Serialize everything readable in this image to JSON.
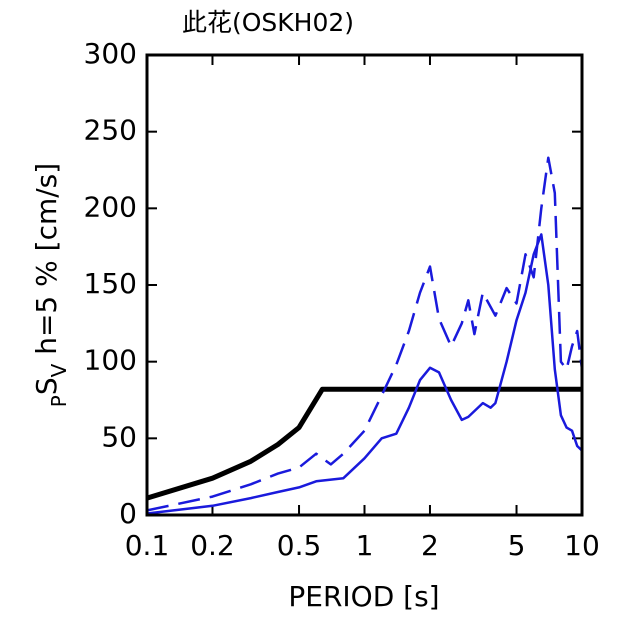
{
  "chart_data": {
    "type": "line",
    "title": "此花(OSKH02)",
    "xlabel": "PERIOD [s]",
    "ylabel": [
      "P",
      "S",
      "V",
      " h=5 % [cm/s]"
    ],
    "xscale": "log",
    "xlim": [
      0.1,
      10
    ],
    "ylim": [
      0,
      300
    ],
    "xticks": [
      0.1,
      0.2,
      0.5,
      1,
      2,
      5,
      10
    ],
    "yticks": [
      0,
      50,
      100,
      150,
      200,
      250,
      300
    ],
    "series": [
      {
        "color": "#000000",
        "dash": "solid",
        "width": 5,
        "x": [
          0.1,
          0.2,
          0.3,
          0.4,
          0.5,
          0.64,
          10
        ],
        "values": [
          11,
          24,
          35,
          46,
          57,
          82,
          82
        ]
      },
      {
        "color": "#1a1adc",
        "dash": "dashed",
        "width": 2.5,
        "x": [
          0.1,
          0.2,
          0.3,
          0.4,
          0.5,
          0.6,
          0.7,
          0.8,
          1.0,
          1.2,
          1.4,
          1.6,
          1.8,
          2.0,
          2.2,
          2.5,
          2.8,
          3.0,
          3.2,
          3.5,
          4.0,
          4.5,
          5.0,
          5.5,
          6.0,
          6.5,
          7.0,
          7.5,
          8.0,
          8.5,
          9.0,
          9.5,
          10
        ],
        "values": [
          3,
          12,
          20,
          27,
          31,
          40,
          33,
          40,
          55,
          78,
          98,
          120,
          145,
          162,
          128,
          110,
          125,
          140,
          118,
          145,
          130,
          148,
          138,
          170,
          155,
          200,
          233,
          210,
          100,
          95,
          110,
          120,
          95
        ]
      },
      {
        "color": "#1a1adc",
        "dash": "solid",
        "width": 2.5,
        "x": [
          0.1,
          0.2,
          0.3,
          0.4,
          0.5,
          0.6,
          0.8,
          1.0,
          1.2,
          1.4,
          1.6,
          1.8,
          2.0,
          2.2,
          2.5,
          2.8,
          3.0,
          3.5,
          3.8,
          4.0,
          4.5,
          5.0,
          5.5,
          6.0,
          6.5,
          7.0,
          7.5,
          8.0,
          8.5,
          9.0,
          9.5,
          10
        ],
        "values": [
          1,
          6,
          11,
          15,
          18,
          22,
          24,
          37,
          50,
          53,
          70,
          88,
          96,
          93,
          75,
          62,
          64,
          73,
          70,
          73,
          100,
          127,
          145,
          170,
          183,
          150,
          95,
          65,
          57,
          55,
          45,
          42
        ]
      }
    ]
  }
}
